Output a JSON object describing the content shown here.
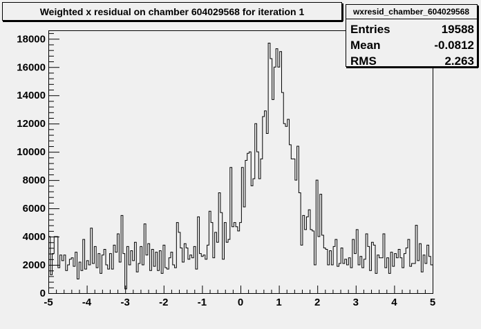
{
  "chart_data": {
    "type": "histogram",
    "title": "Weighted x residual on chamber 604029568 for iteration 1",
    "stats_box": {
      "name": "wxresid_chamber_604029568",
      "rows": [
        {
          "label": "Entries",
          "value": "19588"
        },
        {
          "label": "Mean",
          "value": "-0.0812"
        },
        {
          "label": "RMS",
          "value": "2.263"
        }
      ]
    },
    "xlim": [
      -5,
      5
    ],
    "ylim": [
      0,
      18600
    ],
    "x_ticks": [
      "-5",
      "-4",
      "-3",
      "-2",
      "-1",
      "0",
      "1",
      "2",
      "3",
      "4",
      "5"
    ],
    "x_tick_values": [
      -5,
      -4,
      -3,
      -2,
      -1,
      0,
      1,
      2,
      3,
      4,
      5
    ],
    "y_ticks": [
      "0",
      "2000",
      "4000",
      "6000",
      "8000",
      "10000",
      "12000",
      "14000",
      "16000",
      "18000"
    ],
    "y_tick_values": [
      0,
      2000,
      4000,
      6000,
      8000,
      10000,
      12000,
      14000,
      16000,
      18000
    ],
    "bins": 200,
    "bin_range": [
      -5,
      5
    ],
    "values": [
      4000,
      1300,
      2800,
      4000,
      4000,
      1800,
      2700,
      2300,
      2700,
      1600,
      2000,
      2400,
      2500,
      1900,
      2900,
      1000,
      2200,
      1600,
      3800,
      1700,
      2300,
      2000,
      4600,
      2100,
      3300,
      1800,
      2800,
      1400,
      2700,
      3100,
      2000,
      1700,
      2800,
      1700,
      3400,
      2900,
      4200,
      2200,
      5500,
      2800,
      300,
      3300,
      2000,
      3000,
      2300,
      3600,
      1500,
      2100,
      3300,
      2000,
      4900,
      2700,
      3500,
      1600,
      3100,
      1900,
      2900,
      1600,
      3000,
      1400,
      3400,
      1800,
      1700,
      2500,
      2900,
      2000,
      1800,
      5000,
      4300,
      3200,
      2200,
      3500,
      3200,
      2400,
      2700,
      2500,
      3300,
      1700,
      5400,
      2800,
      2600,
      2700,
      2400,
      3400,
      5800,
      5000,
      2500,
      4300,
      3600,
      7100,
      5700,
      2400,
      5000,
      3600,
      3800,
      8900,
      4700,
      5000,
      4700,
      4400,
      5000,
      8900,
      6100,
      9400,
      9900,
      10000,
      7600,
      8100,
      12000,
      10000,
      8100,
      9500,
      12500,
      12900,
      11300,
      17700,
      16600,
      13700,
      16000,
      17300,
      16000,
      17100,
      14200,
      12000,
      11800,
      12300,
      10500,
      9500,
      9500,
      8000,
      10400,
      7100,
      3400,
      5500,
      4500,
      5400,
      5900,
      4500,
      4400,
      2000,
      8000,
      4000,
      7000,
      4100,
      3200,
      3100,
      2000,
      3000,
      2000,
      3300,
      3800,
      1900,
      2100,
      3200,
      2100,
      2400,
      2000,
      2500,
      1800,
      3800,
      2800,
      4500,
      2000,
      2600,
      1800,
      2400,
      4200,
      3300,
      1600,
      3600,
      3400,
      1400,
      2700,
      2500,
      2500,
      4200,
      1800,
      2500,
      1400,
      2900,
      1900,
      2800,
      2500,
      3100,
      2500,
      1800,
      2800,
      3200,
      3800,
      1900,
      2100,
      2100,
      4800,
      2300,
      3500,
      1500,
      2700,
      2100,
      3400,
      2600,
      2000
    ],
    "line_color": "#000000",
    "frame_color": "#000000",
    "background_color": "#f0f0f0"
  }
}
